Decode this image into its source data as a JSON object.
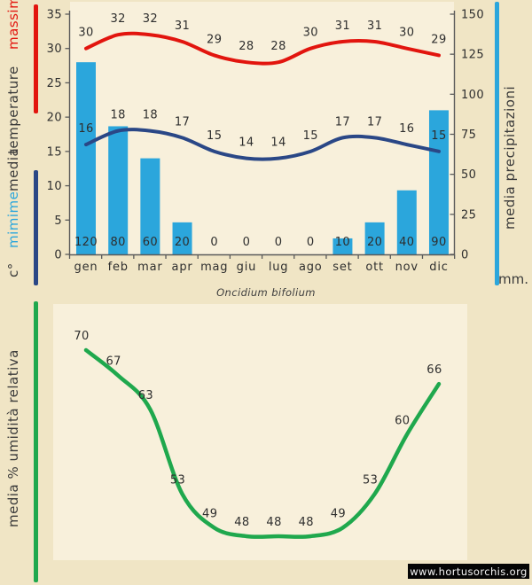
{
  "caption": "Oncidium bifolium",
  "watermark": "www.hortusorchis.org",
  "colors": {
    "page_bg": "#F0E5C5",
    "plot_bg": "#F8F0DB",
    "max_line": "#E2150E",
    "min_line": "#2A4786",
    "bar": "#2BA6DC",
    "humidity_line": "#1FA84D",
    "axis": "#5a5a5a",
    "text": "#2e2e2e",
    "watermark_bg": "#050505",
    "watermark_text": "#F7F7F7"
  },
  "top_chart": {
    "left_axis_labels": {
      "massime": "massime",
      "temperature": "temperature",
      "media": "media",
      "mimime": "mimime",
      "unit": "c°"
    },
    "right_axis_label": "media precipitazioni",
    "right_axis_unit": "mm."
  },
  "bottom_chart": {
    "ylabel": "media % umidità relativa"
  },
  "chart_data": [
    {
      "id": "temperature-precipitation",
      "type": "combo",
      "categories": [
        "gen",
        "feb",
        "mar",
        "apr",
        "mag",
        "giu",
        "lug",
        "ago",
        "set",
        "ott",
        "nov",
        "dic"
      ],
      "series": [
        {
          "name": "media precipitazioni",
          "type": "bar",
          "axis": "right",
          "unit": "mm",
          "color": "#2BA6DC",
          "values": [
            120,
            80,
            60,
            20,
            0,
            0,
            0,
            0,
            10,
            20,
            40,
            90
          ]
        },
        {
          "name": "mimime",
          "type": "line",
          "axis": "left",
          "unit": "c°",
          "color": "#2A4786",
          "values": [
            16,
            18,
            18,
            17,
            15,
            14,
            14,
            15,
            17,
            17,
            16,
            15
          ]
        },
        {
          "name": "massime",
          "type": "line",
          "axis": "left",
          "unit": "c°",
          "color": "#E2150E",
          "values": [
            30,
            32,
            32,
            31,
            29,
            28,
            28,
            30,
            31,
            31,
            30,
            29
          ]
        }
      ],
      "left_axis": {
        "range": [
          0,
          35
        ],
        "ticks": [
          35,
          30,
          25,
          20,
          15,
          10,
          5,
          0
        ]
      },
      "right_axis": {
        "range": [
          0,
          150
        ],
        "ticks": [
          150,
          125,
          100,
          75,
          50,
          25,
          0
        ]
      },
      "grid": false,
      "legend": "left/right vertical captions"
    },
    {
      "id": "humidity",
      "type": "line",
      "categories": [
        "gen",
        "feb",
        "mar",
        "apr",
        "mag",
        "giu",
        "lug",
        "ago",
        "set",
        "ott",
        "nov",
        "dic"
      ],
      "series": [
        {
          "name": "media % umidità relativa",
          "color": "#1FA84D",
          "values": [
            70,
            67,
            63,
            53,
            49,
            48,
            48,
            48,
            49,
            53,
            60,
            66
          ]
        }
      ],
      "ylim": [
        45,
        72
      ],
      "grid": false
    }
  ]
}
